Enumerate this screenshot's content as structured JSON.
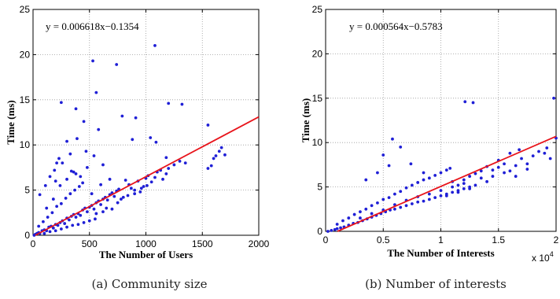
{
  "chart_data": [
    {
      "type": "scatter",
      "caption": "(a) Community size",
      "xlabel": "The Number of Users",
      "ylabel": "Time (ms)",
      "xlim": [
        0,
        2000
      ],
      "ylim": [
        0,
        25
      ],
      "xticks": [
        0,
        500,
        1000,
        1500,
        2000
      ],
      "yticks": [
        0,
        5,
        10,
        15,
        20,
        25
      ],
      "grid": true,
      "annotation": "y = 0.006618x−0.1354",
      "fit_line": {
        "slope": 0.006618,
        "intercept": -0.1354,
        "color": "#e8141b"
      },
      "point_color": "#1f1fd6",
      "points": [
        [
          10,
          0.0
        ],
        [
          20,
          0.1
        ],
        [
          35,
          0.2
        ],
        [
          50,
          0.3
        ],
        [
          60,
          0.2
        ],
        [
          80,
          0.5
        ],
        [
          100,
          0.6
        ],
        [
          120,
          0.5
        ],
        [
          140,
          0.9
        ],
        [
          160,
          1.0
        ],
        [
          180,
          0.8
        ],
        [
          200,
          1.2
        ],
        [
          220,
          1.1
        ],
        [
          240,
          1.4
        ],
        [
          260,
          1.6
        ],
        [
          280,
          1.3
        ],
        [
          300,
          1.9
        ],
        [
          320,
          1.7
        ],
        [
          340,
          2.1
        ],
        [
          360,
          2.3
        ],
        [
          380,
          2.0
        ],
        [
          400,
          2.4
        ],
        [
          420,
          2.2
        ],
        [
          440,
          2.8
        ],
        [
          460,
          3.0
        ],
        [
          480,
          2.6
        ],
        [
          500,
          3.1
        ],
        [
          520,
          3.3
        ],
        [
          540,
          2.9
        ],
        [
          560,
          3.6
        ],
        [
          580,
          3.8
        ],
        [
          600,
          3.4
        ],
        [
          620,
          4.0
        ],
        [
          640,
          4.2
        ],
        [
          660,
          3.9
        ],
        [
          680,
          4.5
        ],
        [
          700,
          4.7
        ],
        [
          720,
          4.3
        ],
        [
          740,
          4.9
        ],
        [
          760,
          5.1
        ],
        [
          50,
          1.0
        ],
        [
          90,
          1.5
        ],
        [
          130,
          2.0
        ],
        [
          170,
          2.5
        ],
        [
          210,
          3.2
        ],
        [
          250,
          3.5
        ],
        [
          290,
          4.1
        ],
        [
          330,
          4.6
        ],
        [
          370,
          5.0
        ],
        [
          410,
          5.4
        ],
        [
          100,
          0.2
        ],
        [
          150,
          0.4
        ],
        [
          200,
          0.5
        ],
        [
          250,
          0.7
        ],
        [
          300,
          0.9
        ],
        [
          350,
          1.1
        ],
        [
          400,
          1.2
        ],
        [
          450,
          1.4
        ],
        [
          500,
          1.6
        ],
        [
          550,
          1.8
        ],
        [
          120,
          3.0
        ],
        [
          180,
          4.0
        ],
        [
          240,
          5.5
        ],
        [
          300,
          6.2
        ],
        [
          360,
          7.0
        ],
        [
          420,
          6.5
        ],
        [
          480,
          7.5
        ],
        [
          200,
          6.0
        ],
        [
          260,
          8.0
        ],
        [
          330,
          9.0
        ],
        [
          60,
          4.5
        ],
        [
          110,
          5.5
        ],
        [
          150,
          6.5
        ],
        [
          190,
          7.2
        ],
        [
          230,
          8.5
        ],
        [
          380,
          6.8
        ],
        [
          440,
          5.8
        ],
        [
          520,
          4.6
        ],
        [
          600,
          5.6
        ],
        [
          680,
          6.2
        ],
        [
          800,
          4.2
        ],
        [
          850,
          5.6
        ],
        [
          900,
          5.0
        ],
        [
          950,
          4.8
        ],
        [
          1000,
          6.3
        ],
        [
          1050,
          5.9
        ],
        [
          1100,
          7.0
        ],
        [
          1150,
          6.2
        ],
        [
          1200,
          7.4
        ],
        [
          1250,
          7.8
        ],
        [
          820,
          6.1
        ],
        [
          870,
          5.2
        ],
        [
          930,
          6.0
        ],
        [
          980,
          5.4
        ],
        [
          1020,
          6.6
        ],
        [
          1080,
          6.4
        ],
        [
          1130,
          7.2
        ],
        [
          1180,
          6.8
        ],
        [
          1300,
          8.2
        ],
        [
          1350,
          8.0
        ],
        [
          750,
          3.6
        ],
        [
          700,
          2.9
        ],
        [
          650,
          3.0
        ],
        [
          780,
          4.0
        ],
        [
          840,
          4.4
        ],
        [
          900,
          4.6
        ],
        [
          960,
          5.2
        ],
        [
          1010,
          5.5
        ],
        [
          620,
          2.6
        ],
        [
          560,
          2.4
        ],
        [
          1550,
          7.4
        ],
        [
          1580,
          7.7
        ],
        [
          1600,
          8.5
        ],
        [
          1620,
          8.8
        ],
        [
          1650,
          9.3
        ],
        [
          1670,
          9.7
        ],
        [
          1700,
          8.9
        ],
        [
          530,
          19.3
        ],
        [
          740,
          18.9
        ],
        [
          1080,
          21.0
        ],
        [
          250,
          14.7
        ],
        [
          380,
          14.0
        ],
        [
          560,
          15.8
        ],
        [
          1200,
          14.6
        ],
        [
          1320,
          14.5
        ],
        [
          1550,
          12.2
        ],
        [
          450,
          12.6
        ],
        [
          580,
          11.7
        ],
        [
          790,
          13.2
        ],
        [
          910,
          13.0
        ],
        [
          880,
          10.6
        ],
        [
          1040,
          10.8
        ],
        [
          1090,
          10.3
        ],
        [
          1180,
          8.6
        ],
        [
          470,
          9.3
        ],
        [
          540,
          8.8
        ],
        [
          620,
          7.8
        ],
        [
          390,
          10.7
        ],
        [
          300,
          10.4
        ],
        [
          340,
          7.1
        ],
        [
          210,
          8.0
        ]
      ]
    },
    {
      "type": "scatter",
      "caption": "(b) Number of interests",
      "xlabel": "The Number of Interests",
      "ylabel": "Time (ms)",
      "xlim": [
        0,
        2
      ],
      "ylim": [
        0,
        25
      ],
      "xticks": [
        0,
        0.5,
        1,
        1.5,
        2
      ],
      "xtick_labels": [
        "0",
        "0.5",
        "1",
        "1.5",
        "2"
      ],
      "yticks": [
        0,
        5,
        10,
        15,
        20,
        25
      ],
      "x_multiplier_base": "x 10",
      "x_multiplier_exp": "4",
      "grid": true,
      "annotation": "y = 0.000564x−0.5783",
      "fit_line": {
        "slope": 5.64,
        "intercept": -0.5783,
        "color": "#e8141b"
      },
      "point_color": "#1f1fd6",
      "points": [
        [
          0.02,
          0.0
        ],
        [
          0.05,
          0.1
        ],
        [
          0.08,
          0.2
        ],
        [
          0.1,
          0.3
        ],
        [
          0.13,
          0.4
        ],
        [
          0.16,
          0.5
        ],
        [
          0.2,
          0.7
        ],
        [
          0.24,
          0.9
        ],
        [
          0.28,
          1.0
        ],
        [
          0.32,
          1.2
        ],
        [
          0.36,
          1.4
        ],
        [
          0.4,
          1.6
        ],
        [
          0.44,
          1.8
        ],
        [
          0.48,
          2.0
        ],
        [
          0.52,
          2.2
        ],
        [
          0.56,
          2.4
        ],
        [
          0.6,
          2.5
        ],
        [
          0.65,
          2.7
        ],
        [
          0.7,
          2.9
        ],
        [
          0.75,
          3.1
        ],
        [
          0.8,
          3.3
        ],
        [
          0.85,
          3.4
        ],
        [
          0.9,
          3.6
        ],
        [
          0.95,
          3.8
        ],
        [
          1.0,
          4.0
        ],
        [
          1.05,
          4.2
        ],
        [
          1.1,
          4.4
        ],
        [
          1.15,
          4.6
        ],
        [
          1.2,
          4.8
        ],
        [
          1.25,
          5.0
        ],
        [
          0.1,
          0.8
        ],
        [
          0.15,
          1.2
        ],
        [
          0.2,
          1.5
        ],
        [
          0.25,
          1.9
        ],
        [
          0.3,
          2.2
        ],
        [
          0.35,
          2.5
        ],
        [
          0.4,
          2.9
        ],
        [
          0.45,
          3.2
        ],
        [
          0.5,
          3.6
        ],
        [
          0.55,
          3.8
        ],
        [
          0.6,
          4.2
        ],
        [
          0.65,
          4.5
        ],
        [
          0.7,
          4.9
        ],
        [
          0.75,
          5.2
        ],
        [
          0.8,
          5.5
        ],
        [
          0.85,
          5.8
        ],
        [
          0.9,
          6.0
        ],
        [
          0.95,
          6.3
        ],
        [
          1.0,
          6.6
        ],
        [
          1.05,
          6.9
        ],
        [
          1.1,
          5.6
        ],
        [
          1.15,
          5.2
        ],
        [
          1.2,
          5.8
        ],
        [
          1.25,
          6.2
        ],
        [
          1.3,
          6.5
        ],
        [
          1.35,
          6.0
        ],
        [
          1.4,
          5.6
        ],
        [
          1.45,
          6.9
        ],
        [
          1.5,
          7.2
        ],
        [
          1.55,
          7.6
        ],
        [
          1.6,
          6.8
        ],
        [
          1.65,
          7.4
        ],
        [
          1.7,
          8.2
        ],
        [
          1.75,
          7.0
        ],
        [
          1.8,
          8.5
        ],
        [
          1.3,
          5.2
        ],
        [
          1.4,
          7.3
        ],
        [
          1.5,
          8.0
        ],
        [
          1.6,
          8.8
        ],
        [
          1.68,
          9.2
        ],
        [
          0.3,
          1.5
        ],
        [
          0.4,
          2.0
        ],
        [
          0.5,
          2.4
        ],
        [
          0.6,
          3.0
        ],
        [
          0.7,
          3.5
        ],
        [
          0.8,
          3.9
        ],
        [
          0.9,
          4.2
        ],
        [
          1.0,
          4.6
        ],
        [
          1.1,
          5.0
        ],
        [
          1.2,
          5.4
        ],
        [
          0.58,
          10.4
        ],
        [
          0.65,
          9.5
        ],
        [
          0.5,
          8.6
        ],
        [
          0.35,
          5.8
        ],
        [
          0.45,
          6.6
        ],
        [
          0.55,
          7.4
        ],
        [
          0.74,
          7.6
        ],
        [
          0.85,
          6.6
        ],
        [
          1.08,
          7.1
        ],
        [
          1.21,
          14.6
        ],
        [
          1.28,
          14.5
        ],
        [
          1.98,
          15.0
        ],
        [
          1.9,
          8.8
        ],
        [
          1.95,
          8.2
        ],
        [
          1.85,
          9.0
        ],
        [
          2.0,
          10.5
        ],
        [
          1.92,
          9.4
        ],
        [
          1.35,
          6.8
        ],
        [
          1.45,
          6.2
        ],
        [
          1.55,
          6.6
        ],
        [
          1.65,
          6.2
        ],
        [
          1.75,
          7.6
        ],
        [
          1.25,
          4.8
        ],
        [
          1.15,
          4.4
        ],
        [
          1.05,
          4.0
        ]
      ]
    }
  ]
}
